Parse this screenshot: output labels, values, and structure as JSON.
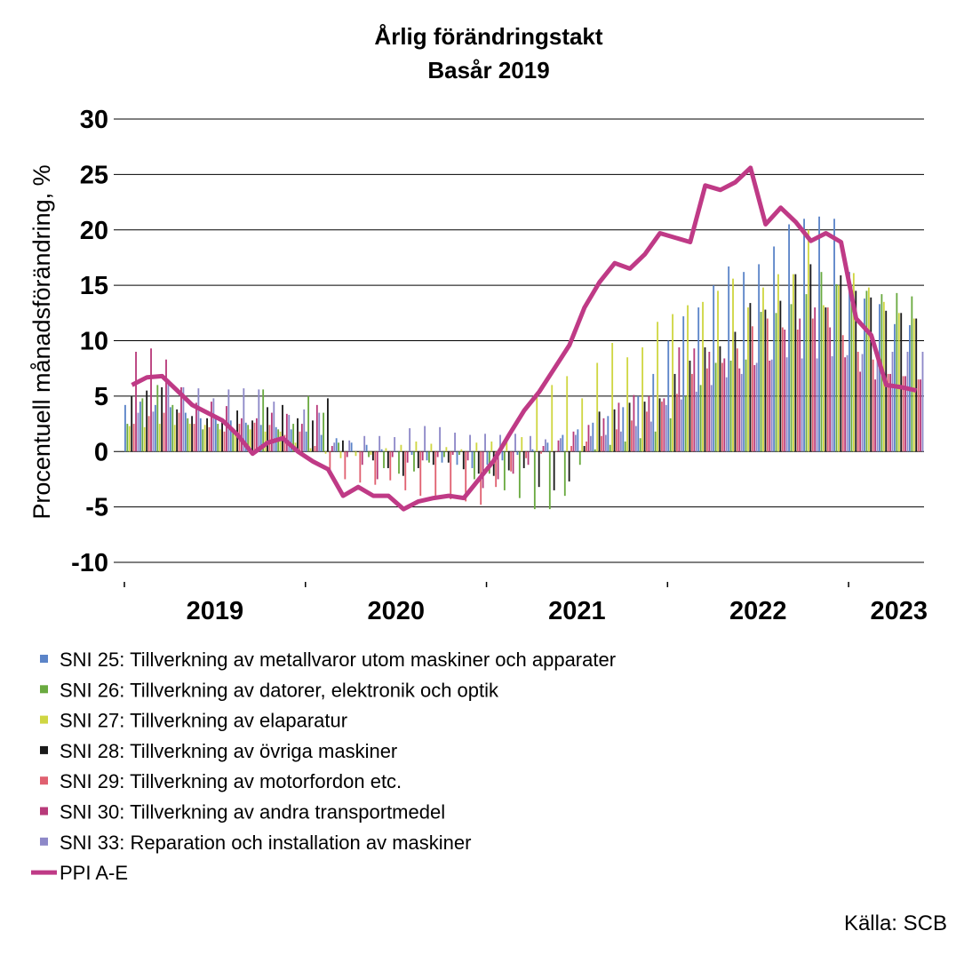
{
  "chart_data": {
    "type": "bar",
    "title": "Årlig förändringstakt",
    "subtitle": "Basår 2019",
    "ylabel": "Procentuell månadsförändring, %",
    "ylim": [
      -10,
      30
    ],
    "yticks": [
      30,
      25,
      20,
      15,
      10,
      5,
      0,
      -5,
      -10
    ],
    "x_labels": [
      "2019",
      "2020",
      "2021",
      "2022",
      "2023"
    ],
    "grid": true,
    "legend_position": "bottom",
    "source": "Källa: SCB",
    "months": 53,
    "series": [
      {
        "name": "SNI 25: Tillverkning av metallvaror utom maskiner och apparater",
        "color": "#5b84c8",
        "kind": "bar",
        "values": [
          4.2,
          4.5,
          4.2,
          4.0,
          3.5,
          3.0,
          3.0,
          2.8,
          2.6,
          2.4,
          2.2,
          2.0,
          1.8,
          1.5,
          1.2,
          0.8,
          0.6,
          0.2,
          0.0,
          -0.3,
          -0.8,
          -1.0,
          -1.2,
          -1.5,
          -1.2,
          -0.8,
          -0.3,
          0.2,
          0.8,
          1.5,
          2.0,
          2.6,
          3.2,
          4.0,
          5.0,
          7.0,
          10.0,
          12.2,
          13.0,
          15.0,
          16.7,
          16.2,
          16.9,
          18.5,
          20.5,
          21.0,
          21.2,
          21.0,
          16.2,
          13.8,
          13.3,
          11.5,
          11.4
        ]
      },
      {
        "name": "SNI 26: Tillverkning av datorer, elektronik och optik",
        "color": "#6aaa40",
        "kind": "bar",
        "values": [
          2.5,
          4.8,
          6.0,
          4.2,
          3.0,
          2.0,
          2.5,
          2.0,
          2.4,
          5.6,
          2.0,
          2.5,
          5.0,
          3.5,
          0.8,
          0.0,
          -0.5,
          -1.5,
          -2.0,
          -1.8,
          -1.0,
          -0.5,
          -0.3,
          -2.5,
          -2.0,
          -3.5,
          -4.2,
          -5.2,
          -5.2,
          -4.0,
          -1.2,
          0.2,
          0.6,
          0.9,
          1.2,
          1.8,
          3.0,
          5.0,
          6.0,
          8.0,
          8.2,
          8.3,
          12.6,
          12.5,
          13.3,
          14.2,
          16.2,
          15.1,
          15.0,
          14.5,
          14.2,
          14.3,
          14.0
        ]
      },
      {
        "name": "SNI 27: Tillverkning av elaparatur",
        "color": "#cfd642",
        "kind": "bar",
        "values": [
          2.3,
          2.2,
          2.5,
          2.4,
          2.5,
          2.4,
          2.0,
          1.6,
          2.0,
          1.8,
          1.8,
          0.8,
          0.3,
          -0.2,
          -0.6,
          -0.4,
          -0.3,
          0.3,
          0.6,
          0.9,
          0.7,
          0.4,
          0.2,
          0.8,
          0.9,
          1.0,
          1.3,
          5.0,
          6.0,
          6.8,
          4.8,
          8.0,
          9.8,
          8.5,
          9.4,
          11.7,
          12.4,
          13.2,
          13.5,
          14.5,
          15.6,
          13.0,
          14.8,
          16.0,
          16.0,
          20.0,
          13.2,
          15.0,
          16.1,
          14.8,
          13.5,
          12.5,
          12.0
        ]
      },
      {
        "name": "SNI 28: Tillverkning av övriga maskiner",
        "color": "#1a1a1a",
        "kind": "bar",
        "values": [
          5.0,
          5.5,
          5.8,
          3.8,
          3.2,
          3.0,
          3.0,
          3.7,
          2.8,
          4.0,
          4.2,
          3.0,
          2.8,
          4.8,
          1.0,
          0.0,
          -0.8,
          -1.5,
          -2.2,
          -1.5,
          -1.2,
          -1.0,
          -1.6,
          -2.0,
          -2.2,
          -1.7,
          -1.5,
          -3.2,
          -3.5,
          -2.7,
          0.5,
          3.6,
          3.8,
          4.4,
          4.5,
          4.8,
          7.0,
          8.2,
          9.4,
          9.5,
          10.8,
          13.4,
          12.8,
          13.6,
          16.0,
          16.9,
          13.0,
          15.9,
          14.5,
          13.9,
          12.7,
          12.5,
          12.0
        ]
      },
      {
        "name": "SNI 29: Tillverkning av motorfordon etc.",
        "color": "#e06070",
        "kind": "bar",
        "values": [
          2.5,
          3.2,
          3.5,
          3.5,
          2.5,
          2.2,
          1.8,
          2.5,
          2.6,
          2.4,
          1.5,
          1.8,
          0.5,
          -2.0,
          -2.5,
          -2.8,
          -3.0,
          -2.6,
          -3.5,
          -4.0,
          -4.1,
          -4.3,
          -4.5,
          -4.8,
          -3.2,
          -1.8,
          -0.6,
          -0.2,
          0.0,
          0.5,
          0.9,
          1.4,
          2.0,
          2.8,
          3.6,
          4.5,
          5.2,
          7.0,
          7.5,
          8.0,
          9.3,
          11.3,
          12.0,
          11.2,
          11.0,
          12.0,
          13.0,
          10.5,
          9.0,
          8.3,
          7.0,
          6.8,
          6.5
        ]
      },
      {
        "name": "SNI 30: Tillverkning av andra transportmedel",
        "color": "#b83a7a",
        "kind": "bar",
        "values": [
          9.0,
          9.3,
          8.3,
          5.8,
          4.4,
          4.5,
          4.1,
          3.0,
          3.0,
          3.5,
          3.4,
          2.5,
          4.2,
          0.5,
          -0.5,
          -1.2,
          -2.5,
          -0.5,
          -1.0,
          -0.8,
          -0.5,
          -0.3,
          -0.8,
          -3.3,
          -2.5,
          -2.0,
          -1.2,
          0.5,
          1.0,
          1.8,
          2.4,
          3.0,
          4.4,
          5.1,
          5.0,
          4.8,
          9.4,
          9.3,
          9.0,
          8.4,
          7.5,
          7.8,
          8.2,
          11.0,
          12.0,
          13.0,
          11.2,
          8.5,
          7.2,
          6.5,
          7.0,
          6.8,
          6.5
        ]
      },
      {
        "name": "SNI 33: Reparation och installation av maskiner",
        "color": "#8d88c8",
        "kind": "bar",
        "values": [
          3.5,
          3.6,
          6.5,
          5.8,
          5.7,
          4.8,
          5.6,
          5.7,
          5.6,
          4.5,
          3.3,
          3.8,
          3.5,
          0.8,
          1.0,
          1.4,
          1.4,
          1.3,
          2.1,
          2.3,
          2.2,
          1.7,
          1.5,
          1.6,
          1.5,
          1.6,
          1.4,
          1.1,
          1.2,
          1.5,
          1.4,
          1.5,
          1.8,
          2.3,
          2.7,
          4.2,
          4.7,
          5.4,
          6.0,
          6.7,
          7.0,
          8.0,
          8.3,
          8.5,
          8.4,
          8.4,
          8.6,
          8.7,
          8.8,
          8.9,
          9.0,
          9.0,
          9.0
        ]
      },
      {
        "name": "PPI A-E",
        "color": "#bf3a86",
        "kind": "line",
        "values": [
          6.0,
          6.7,
          6.8,
          5.5,
          4.2,
          3.5,
          2.8,
          1.5,
          -0.2,
          0.8,
          1.2,
          0.0,
          -0.9,
          -1.6,
          -4.0,
          -3.2,
          -4.0,
          -4.0,
          -5.2,
          -4.5,
          -4.2,
          -4.0,
          -4.2,
          -2.5,
          -0.8,
          1.5,
          3.7,
          5.4,
          7.5,
          9.6,
          13.0,
          15.3,
          17.0,
          16.5,
          17.8,
          19.7,
          19.3,
          18.9,
          24.0,
          23.6,
          24.3,
          25.6,
          20.5,
          22.0,
          20.7,
          19.0,
          19.7,
          18.9,
          12.0,
          10.5,
          6.0,
          5.8,
          5.5
        ]
      }
    ]
  }
}
